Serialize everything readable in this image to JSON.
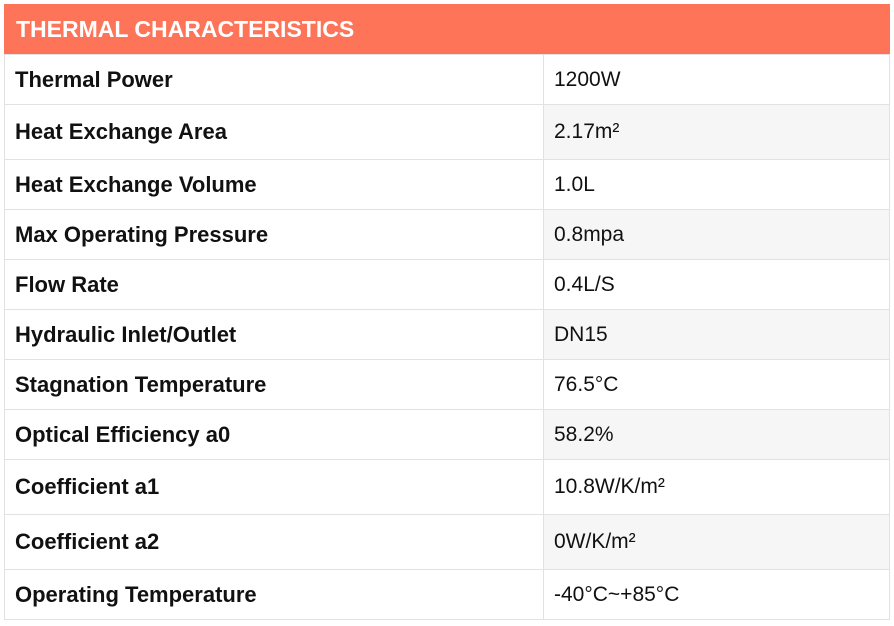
{
  "header": {
    "title": "THERMAL CHARACTERISTICS"
  },
  "table": {
    "rows": [
      [
        "Thermal Power",
        "1200W"
      ],
      [
        "Heat Exchange Area",
        "2.17m²"
      ],
      [
        "Heat Exchange Volume",
        "1.0L"
      ],
      [
        "Max Operating Pressure",
        "0.8mpa"
      ],
      [
        "Flow Rate",
        "0.4L/S"
      ],
      [
        "Hydraulic Inlet/Outlet",
        "DN15"
      ],
      [
        "Stagnation Temperature",
        "76.5°C"
      ],
      [
        "Optical Efficiency a0",
        "58.2%"
      ],
      [
        "Coefficient a1",
        "10.8W/K/m²"
      ],
      [
        "Coefficient a2",
        "0W/K/m²"
      ],
      [
        "Operating Temperature",
        "-40°C~+85°C"
      ]
    ]
  }
}
